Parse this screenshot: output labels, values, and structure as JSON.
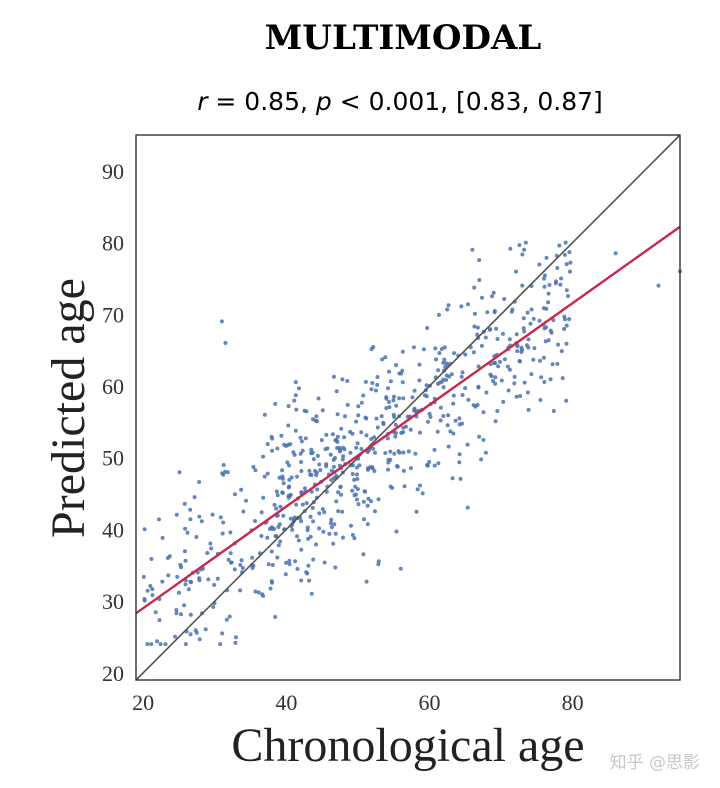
{
  "chart_data": {
    "type": "scatter",
    "title": "MULTIMODAL",
    "subtitle": {
      "r_symbol": "r",
      "r_value": " = 0.85, ",
      "p_symbol": "p",
      "p_value": " < 0.001, [0.83, 0.87]"
    },
    "xlabel": "Chronological age",
    "ylabel": "Predicted age",
    "xlim": [
      19,
      95
    ],
    "ylim": [
      19,
      95
    ],
    "xticks": [
      20,
      40,
      60,
      80
    ],
    "yticks": [
      20,
      30,
      40,
      50,
      60,
      70,
      80,
      90
    ],
    "identity_line": {
      "from": [
        19,
        19
      ],
      "to": [
        95,
        95
      ],
      "color": "#555555"
    },
    "regression_line": {
      "from": [
        19,
        28.3
      ],
      "to": [
        95,
        82.2
      ],
      "color": "#c8284a"
    },
    "point_color": "#4a72b0",
    "points_generation": {
      "n": 720,
      "seed": 7,
      "slope": 0.71,
      "intercept": 14.8,
      "noise_sd": 6.5
    },
    "notable_points": [
      [
        31,
        69
      ],
      [
        31.5,
        66
      ],
      [
        37,
        56
      ],
      [
        56,
        34.5
      ],
      [
        95,
        76
      ],
      [
        92,
        74
      ],
      [
        86,
        78.5
      ],
      [
        66,
        79
      ]
    ]
  },
  "watermark": "知乎 @思影"
}
